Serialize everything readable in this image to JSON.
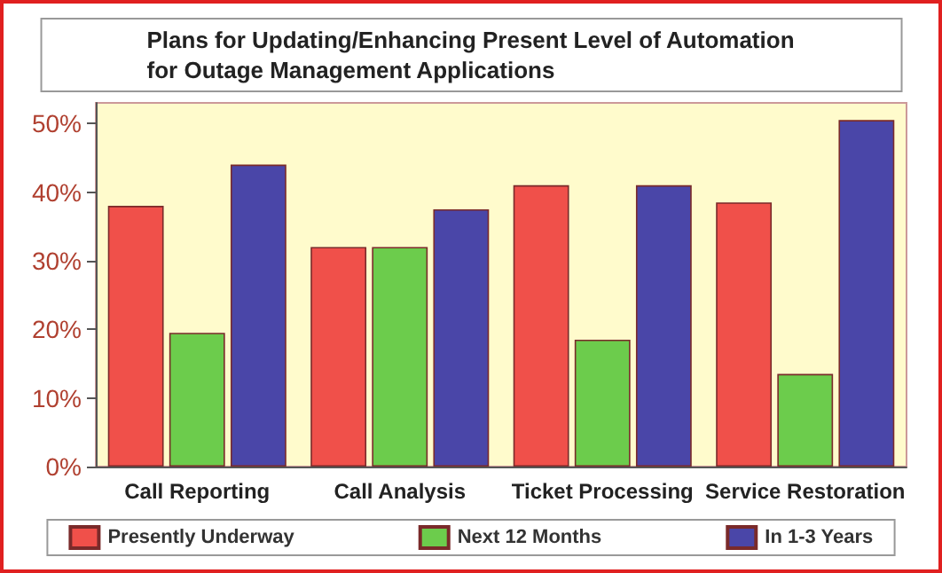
{
  "chart_data": {
    "type": "bar",
    "title": "Plans for Updating/Enhancing Present Level of Automation\nfor Outage Management Applications",
    "categories": [
      "Call Reporting",
      "Call Analysis",
      "Ticket Processing",
      "Service Restoration"
    ],
    "series": [
      {
        "name": "Presently Underway",
        "color": "#f0504a",
        "values": [
          38,
          32,
          41,
          38.5
        ]
      },
      {
        "name": "Next 12 Months",
        "color": "#6ccc4c",
        "values": [
          19.5,
          32,
          18.5,
          13.5
        ]
      },
      {
        "name": "In 1-3 Years",
        "color": "#4a46a8",
        "values": [
          44,
          37.5,
          41,
          50.5
        ]
      }
    ],
    "ylim": [
      0,
      53
    ],
    "yticks": [
      {
        "value": 0,
        "label": "0%"
      },
      {
        "value": 10,
        "label": "10%"
      },
      {
        "value": 20,
        "label": "20%"
      },
      {
        "value": 30,
        "label": "30%"
      },
      {
        "value": 40,
        "label": "40%"
      },
      {
        "value": 50,
        "label": "50%"
      }
    ],
    "grid": false,
    "legend": "bottom"
  }
}
